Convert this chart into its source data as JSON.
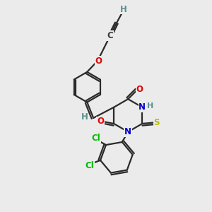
{
  "bg_color": "#ebebeb",
  "atom_colors": {
    "C": "#3a3a3a",
    "H": "#5a9090",
    "O": "#dd0000",
    "N": "#0000cc",
    "S": "#bbbb00",
    "Cl": "#00bb00"
  },
  "bond_color": "#2a2a2a",
  "line_width": 1.6,
  "font_size": 8.5
}
